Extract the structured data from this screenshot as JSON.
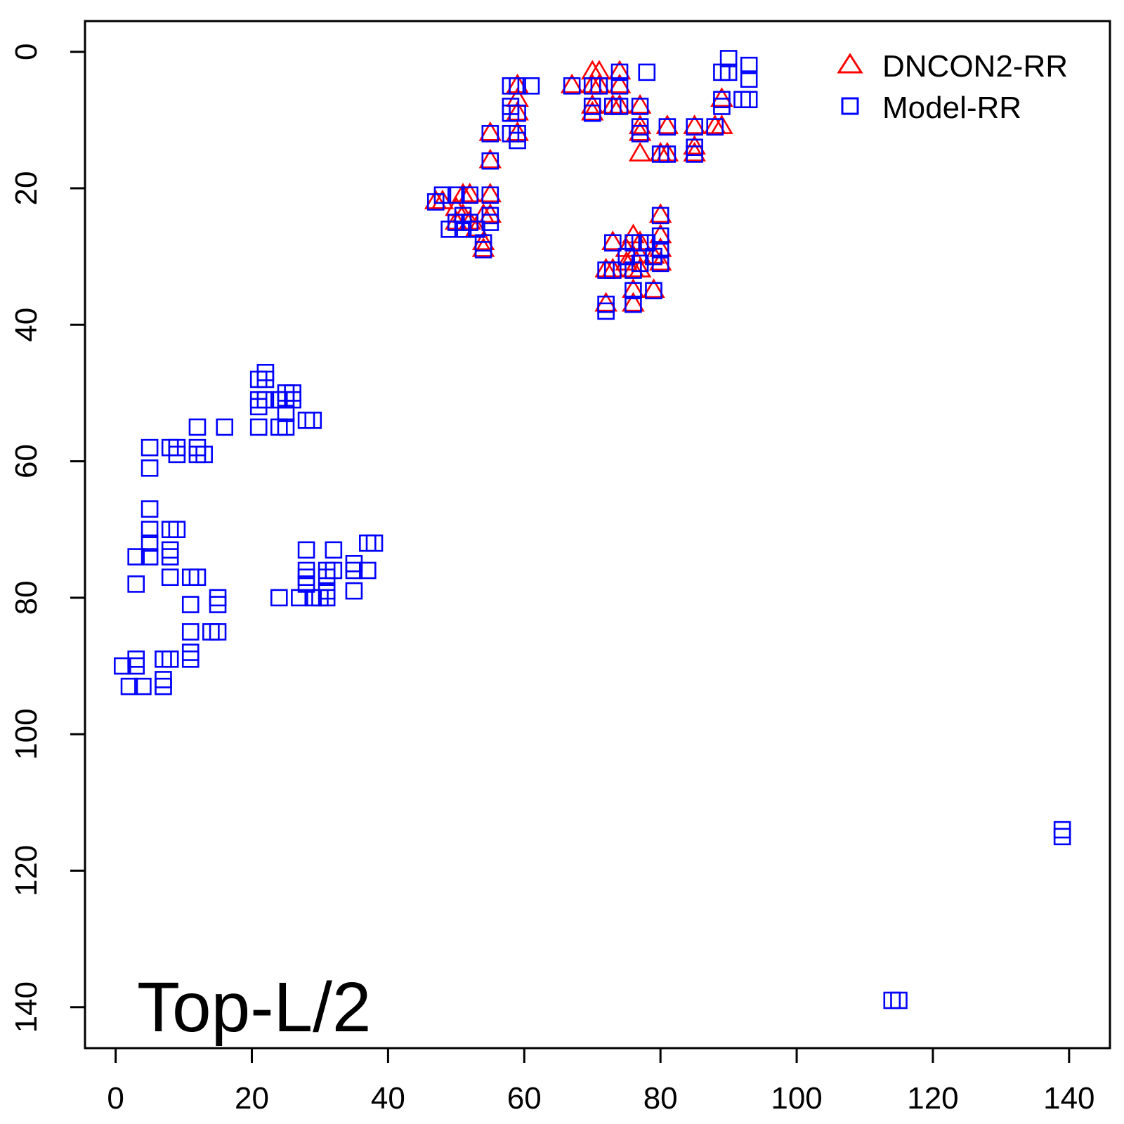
{
  "chart_data": {
    "type": "scatter",
    "annotation": "Top-L/2",
    "xlim": [
      -4.5,
      146
    ],
    "ylim": [
      -4.5,
      146
    ],
    "y_reversed": true,
    "x_ticks": [
      0,
      20,
      40,
      60,
      80,
      100,
      120,
      140
    ],
    "y_ticks": [
      0,
      20,
      40,
      60,
      80,
      100,
      120,
      140
    ],
    "x_tick_labels": [
      "0",
      "20",
      "40",
      "60",
      "80",
      "100",
      "120",
      "140"
    ],
    "y_tick_labels": [
      "0",
      "20",
      "40",
      "60",
      "80",
      "100",
      "120",
      "140"
    ],
    "legend_position": "top-right",
    "series": [
      {
        "name": "DNCON2-RR",
        "marker": "triangle",
        "color": "#ff0000",
        "points": [
          [
            59,
            5
          ],
          [
            59,
            7
          ],
          [
            59,
            9
          ],
          [
            59,
            12
          ],
          [
            55,
            12
          ],
          [
            55,
            16
          ],
          [
            55,
            21
          ],
          [
            54,
            24
          ],
          [
            55,
            24
          ],
          [
            54,
            28
          ],
          [
            54,
            29
          ],
          [
            47,
            22
          ],
          [
            48,
            22
          ],
          [
            50,
            23
          ],
          [
            50,
            25
          ],
          [
            51,
            21
          ],
          [
            51,
            24
          ],
          [
            52,
            21
          ],
          [
            52,
            25
          ],
          [
            53,
            26
          ],
          [
            67,
            5
          ],
          [
            70,
            3
          ],
          [
            70,
            5
          ],
          [
            71,
            3
          ],
          [
            70,
            8
          ],
          [
            70,
            9
          ],
          [
            71,
            5
          ],
          [
            73,
            8
          ],
          [
            74,
            3
          ],
          [
            74,
            5
          ],
          [
            74,
            8
          ],
          [
            77,
            8
          ],
          [
            77,
            11
          ],
          [
            77,
            12
          ],
          [
            77,
            15
          ],
          [
            81,
            11
          ],
          [
            80,
            15
          ],
          [
            81,
            15
          ],
          [
            85,
            11
          ],
          [
            85,
            14
          ],
          [
            85,
            15
          ],
          [
            88,
            11
          ],
          [
            89,
            7
          ],
          [
            89,
            11
          ],
          [
            80,
            24
          ],
          [
            80,
            27
          ],
          [
            80,
            29
          ],
          [
            80,
            31
          ],
          [
            73,
            28
          ],
          [
            72,
            32
          ],
          [
            73,
            32
          ],
          [
            72,
            37
          ],
          [
            75,
            29
          ],
          [
            75,
            31
          ],
          [
            76,
            27
          ],
          [
            76,
            30
          ],
          [
            76,
            32
          ],
          [
            77,
            28
          ],
          [
            77,
            30
          ],
          [
            77,
            32
          ],
          [
            79,
            30
          ],
          [
            76,
            35
          ],
          [
            76,
            37
          ],
          [
            79,
            35
          ]
        ]
      },
      {
        "name": "Model-RR",
        "marker": "square",
        "color": "#0000ff",
        "points": [
          [
            59,
            5
          ],
          [
            58,
            5
          ],
          [
            58,
            8
          ],
          [
            58,
            9
          ],
          [
            59,
            9
          ],
          [
            61,
            5
          ],
          [
            58,
            12
          ],
          [
            59,
            12
          ],
          [
            59,
            13
          ],
          [
            55,
            12
          ],
          [
            55,
            16
          ],
          [
            55,
            21
          ],
          [
            55,
            24
          ],
          [
            55,
            25
          ],
          [
            54,
            28
          ],
          [
            54,
            29
          ],
          [
            47,
            22
          ],
          [
            48,
            21
          ],
          [
            50,
            21
          ],
          [
            50,
            25
          ],
          [
            51,
            24
          ],
          [
            51,
            26
          ],
          [
            52,
            21
          ],
          [
            52,
            25
          ],
          [
            53,
            26
          ],
          [
            49,
            26
          ],
          [
            67,
            5
          ],
          [
            70,
            5
          ],
          [
            70,
            8
          ],
          [
            70,
            9
          ],
          [
            71,
            5
          ],
          [
            73,
            8
          ],
          [
            74,
            3
          ],
          [
            74,
            5
          ],
          [
            74,
            8
          ],
          [
            77,
            8
          ],
          [
            77,
            11
          ],
          [
            77,
            12
          ],
          [
            78,
            3
          ],
          [
            81,
            11
          ],
          [
            80,
            15
          ],
          [
            81,
            15
          ],
          [
            85,
            11
          ],
          [
            85,
            14
          ],
          [
            85,
            15
          ],
          [
            88,
            11
          ],
          [
            89,
            3
          ],
          [
            89,
            7
          ],
          [
            89,
            8
          ],
          [
            90,
            1
          ],
          [
            90,
            3
          ],
          [
            93,
            2
          ],
          [
            93,
            4
          ],
          [
            93,
            7
          ],
          [
            92,
            7
          ],
          [
            80,
            24
          ],
          [
            80,
            27
          ],
          [
            80,
            29
          ],
          [
            80,
            31
          ],
          [
            73,
            28
          ],
          [
            72,
            32
          ],
          [
            73,
            32
          ],
          [
            72,
            37
          ],
          [
            72,
            38
          ],
          [
            75,
            30
          ],
          [
            76,
            28
          ],
          [
            76,
            32
          ],
          [
            77,
            28
          ],
          [
            77,
            31
          ],
          [
            78,
            28
          ],
          [
            79,
            30
          ],
          [
            76,
            35
          ],
          [
            76,
            37
          ],
          [
            79,
            35
          ],
          [
            21,
            48
          ],
          [
            22,
            47
          ],
          [
            22,
            48
          ],
          [
            21,
            51
          ],
          [
            21,
            52
          ],
          [
            22,
            51
          ],
          [
            21,
            55
          ],
          [
            24,
            51
          ],
          [
            25,
            50
          ],
          [
            25,
            51
          ],
          [
            26,
            50
          ],
          [
            26,
            51
          ],
          [
            25,
            53
          ],
          [
            24,
            55
          ],
          [
            25,
            55
          ],
          [
            16,
            55
          ],
          [
            28,
            54
          ],
          [
            29,
            54
          ],
          [
            12,
            55
          ],
          [
            5,
            58
          ],
          [
            8,
            58
          ],
          [
            9,
            58
          ],
          [
            9,
            59
          ],
          [
            12,
            58
          ],
          [
            12,
            59
          ],
          [
            13,
            59
          ],
          [
            5,
            61
          ],
          [
            5,
            67
          ],
          [
            5,
            70
          ],
          [
            5,
            72
          ],
          [
            8,
            70
          ],
          [
            9,
            70
          ],
          [
            8,
            73
          ],
          [
            8,
            74
          ],
          [
            8,
            77
          ],
          [
            5,
            74
          ],
          [
            3,
            74
          ],
          [
            3,
            78
          ],
          [
            11,
            77
          ],
          [
            12,
            77
          ],
          [
            11,
            81
          ],
          [
            15,
            80
          ],
          [
            15,
            81
          ],
          [
            11,
            85
          ],
          [
            14,
            85
          ],
          [
            15,
            85
          ],
          [
            11,
            88
          ],
          [
            11,
            89
          ],
          [
            1,
            90
          ],
          [
            3,
            89
          ],
          [
            3,
            90
          ],
          [
            7,
            89
          ],
          [
            8,
            89
          ],
          [
            7,
            92
          ],
          [
            7,
            93
          ],
          [
            2,
            93
          ],
          [
            4,
            93
          ],
          [
            28,
            73
          ],
          [
            28,
            76
          ],
          [
            28,
            77
          ],
          [
            28,
            78
          ],
          [
            31,
            76
          ],
          [
            31,
            77
          ],
          [
            31,
            79
          ],
          [
            32,
            73
          ],
          [
            32,
            76
          ],
          [
            31,
            80
          ],
          [
            30,
            80
          ],
          [
            29,
            80
          ],
          [
            27,
            80
          ],
          [
            24,
            80
          ],
          [
            35,
            75
          ],
          [
            35,
            76
          ],
          [
            35,
            79
          ],
          [
            37,
            72
          ],
          [
            38,
            72
          ],
          [
            37,
            76
          ],
          [
            139,
            114
          ],
          [
            139,
            115
          ],
          [
            114,
            139
          ],
          [
            115,
            139
          ]
        ]
      }
    ]
  }
}
